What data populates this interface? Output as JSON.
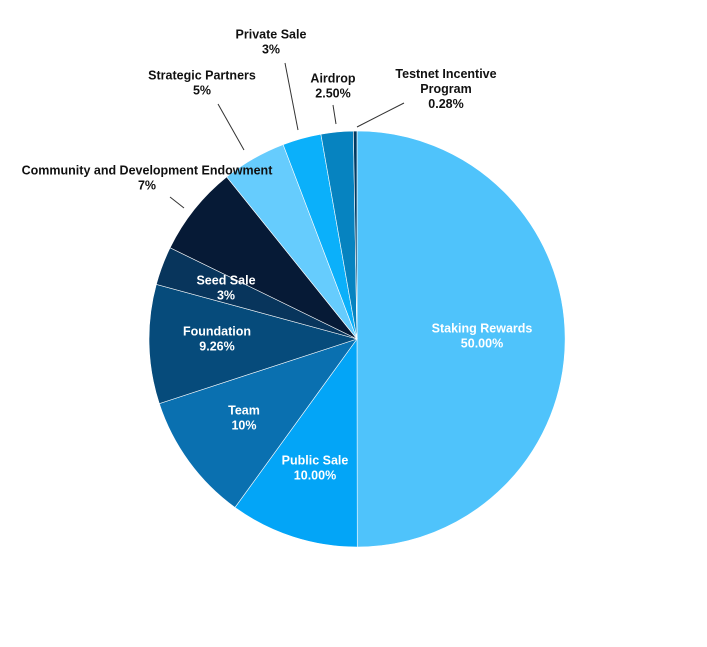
{
  "chart_data": {
    "type": "pie",
    "title": "",
    "slices": [
      {
        "label": "Staking Rewards",
        "value_label": "50.00%",
        "value": 50.0,
        "color": "#4fc3fb",
        "label_pos": "inside"
      },
      {
        "label": "Public Sale",
        "value_label": "10.00%",
        "value": 10.0,
        "color": "#03a5f7",
        "label_pos": "inside"
      },
      {
        "label": "Team",
        "value_label": "10%",
        "value": 10.0,
        "color": "#0a70b0",
        "label_pos": "inside"
      },
      {
        "label": "Foundation",
        "value_label": "9.26%",
        "value": 9.26,
        "color": "#064b7b",
        "label_pos": "inside"
      },
      {
        "label": "Seed Sale",
        "value_label": "3%",
        "value": 3.0,
        "color": "#08355c",
        "label_pos": "inside"
      },
      {
        "label": "Community and Development Endowment",
        "value_label": "7%",
        "value": 7.0,
        "color": "#061a36",
        "label_pos": "outside"
      },
      {
        "label": "Strategic Partners",
        "value_label": "5%",
        "value": 5.0,
        "color": "#66ccfd",
        "label_pos": "outside"
      },
      {
        "label": "Private Sale",
        "value_label": "3%",
        "value": 3.0,
        "color": "#0bb0fa",
        "label_pos": "outside"
      },
      {
        "label": "Airdrop",
        "value_label": "2.50%",
        "value": 2.5,
        "color": "#0683c0",
        "label_pos": "outside"
      },
      {
        "label": "Testnet Incentive Program",
        "value_label": "0.28%",
        "value": 0.28,
        "color": "#003a63",
        "label_pos": "outside"
      }
    ]
  }
}
